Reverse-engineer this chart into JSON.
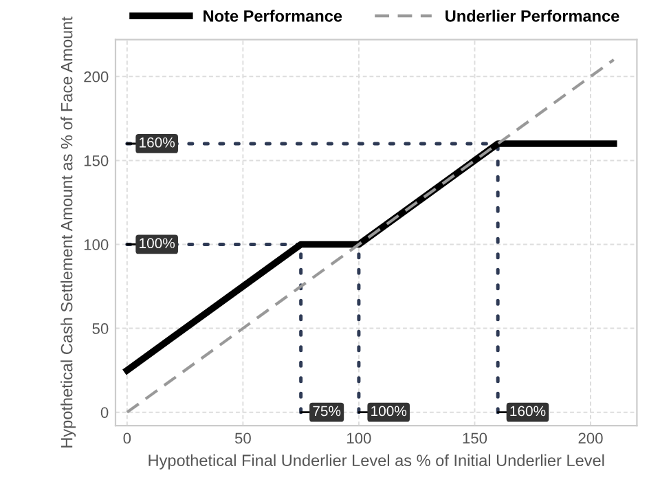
{
  "chart_data": {
    "type": "line",
    "xlabel": "Hypothetical Final Underlier Level as % of Initial Underlier Level",
    "ylabel": "Hypothetical Cash Settlement Amount as % of Face Amount",
    "xlim": [
      -5,
      220
    ],
    "xticks": [
      0,
      50,
      100,
      150,
      200
    ],
    "ylim": [
      -8,
      222
    ],
    "yticks": [
      0,
      50,
      100,
      150,
      200
    ],
    "grid": true,
    "legend": "top",
    "marker": "none",
    "series": [
      {
        "name": "Note Performance",
        "color": "#000000",
        "x": [
          0,
          75,
          100,
          160,
          210
        ],
        "values": [
          25,
          100,
          100,
          160,
          160
        ],
        "line_style": "solid"
      },
      {
        "name": "Underlier Performance",
        "color": "#999999",
        "x": [
          0,
          210
        ],
        "values": [
          0,
          210
        ],
        "line_style": "dashed"
      },
      {
        "color": "#2e3a55",
        "x": [
          0,
          160
        ],
        "values": [
          160,
          160
        ],
        "line_style": "dotted"
      },
      {
        "color": "#2e3a55",
        "x": [
          0,
          75
        ],
        "values": [
          100,
          100
        ],
        "line_style": "dotted"
      },
      {
        "color": "#2e3a55",
        "x": [
          75,
          75
        ],
        "values": [
          0,
          100
        ],
        "line_style": "dotted"
      },
      {
        "color": "#2e3a55",
        "x": [
          100,
          100
        ],
        "values": [
          0,
          100
        ],
        "line_style": "dotted"
      },
      {
        "color": "#2e3a55",
        "x": [
          160,
          160
        ],
        "values": [
          0,
          160
        ],
        "line_style": "dotted"
      }
    ],
    "annotations": [
      {
        "text": "160%",
        "x": 0,
        "y": 160
      },
      {
        "text": "100%",
        "x": 0,
        "y": 100
      },
      {
        "text": "75%",
        "x": 75,
        "y": 0
      },
      {
        "text": "100%",
        "x": 100,
        "y": 0
      },
      {
        "text": "160%",
        "x": 160,
        "y": 0
      }
    ]
  }
}
